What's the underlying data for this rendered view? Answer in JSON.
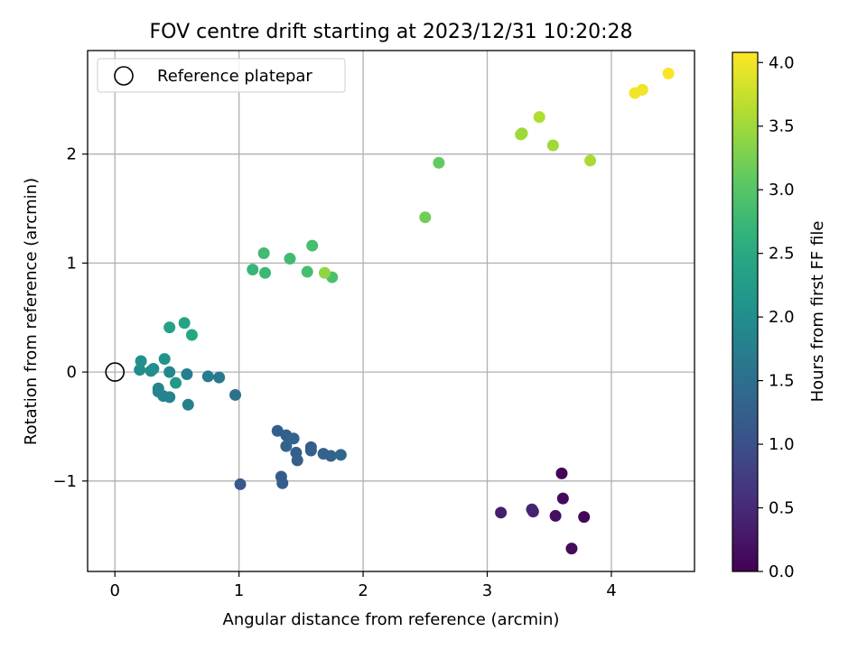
{
  "chart_data": {
    "type": "scatter",
    "title": "FOV centre drift starting at 2023/12/31 10:20:28",
    "xlabel": "Angular distance from reference (arcmin)",
    "ylabel": "Rotation from reference (arcmin)",
    "xlim": [
      -0.22,
      4.67
    ],
    "ylim": [
      -1.83,
      2.95
    ],
    "xticks": [
      0,
      1,
      2,
      3,
      4
    ],
    "yticks": [
      -1,
      0,
      1,
      2
    ],
    "grid": true,
    "legend": {
      "label": "Reference platepar",
      "placement": "top-left"
    },
    "colorbar": {
      "label": "Hours from first FF file",
      "min": 0.0,
      "max": 4.08,
      "ticks": [
        "0.0",
        "0.5",
        "1.0",
        "1.5",
        "2.0",
        "2.5",
        "3.0",
        "3.5",
        "4.0"
      ],
      "colormap": "viridis"
    },
    "reference_point": {
      "x": 0,
      "y": 0
    },
    "points": [
      {
        "x": 3.6,
        "y": -0.93,
        "c": 0.05
      },
      {
        "x": 3.61,
        "y": -1.16,
        "c": 0.1
      },
      {
        "x": 3.55,
        "y": -1.32,
        "c": 0.15
      },
      {
        "x": 3.78,
        "y": -1.33,
        "c": 0.08
      },
      {
        "x": 3.68,
        "y": -1.62,
        "c": 0.12
      },
      {
        "x": 3.11,
        "y": -1.29,
        "c": 0.35
      },
      {
        "x": 3.36,
        "y": -1.26,
        "c": 0.45
      },
      {
        "x": 3.37,
        "y": -1.28,
        "c": 0.4
      },
      {
        "x": 1.01,
        "y": -1.03,
        "c": 1.15
      },
      {
        "x": 1.34,
        "y": -0.96,
        "c": 1.2
      },
      {
        "x": 1.35,
        "y": -1.02,
        "c": 1.2
      },
      {
        "x": 1.31,
        "y": -0.54,
        "c": 1.25
      },
      {
        "x": 1.38,
        "y": -0.58,
        "c": 1.25
      },
      {
        "x": 1.44,
        "y": -0.61,
        "c": 1.3
      },
      {
        "x": 1.38,
        "y": -0.68,
        "c": 1.3
      },
      {
        "x": 1.46,
        "y": -0.74,
        "c": 1.25
      },
      {
        "x": 1.47,
        "y": -0.81,
        "c": 1.25
      },
      {
        "x": 1.58,
        "y": -0.69,
        "c": 1.2
      },
      {
        "x": 1.58,
        "y": -0.72,
        "c": 1.25
      },
      {
        "x": 1.68,
        "y": -0.75,
        "c": 1.3
      },
      {
        "x": 1.74,
        "y": -0.77,
        "c": 1.3
      },
      {
        "x": 1.82,
        "y": -0.76,
        "c": 1.35
      },
      {
        "x": 0.97,
        "y": -0.21,
        "c": 1.55
      },
      {
        "x": 0.84,
        "y": -0.05,
        "c": 1.65
      },
      {
        "x": 0.75,
        "y": -0.04,
        "c": 1.7
      },
      {
        "x": 0.58,
        "y": -0.02,
        "c": 1.75
      },
      {
        "x": 0.59,
        "y": -0.3,
        "c": 1.8
      },
      {
        "x": 0.44,
        "y": -0.23,
        "c": 1.85
      },
      {
        "x": 0.39,
        "y": -0.22,
        "c": 1.85
      },
      {
        "x": 0.35,
        "y": -0.15,
        "c": 1.9
      },
      {
        "x": 0.35,
        "y": -0.18,
        "c": 1.85
      },
      {
        "x": 0.44,
        "y": 0.0,
        "c": 1.9
      },
      {
        "x": 0.29,
        "y": 0.01,
        "c": 1.95
      },
      {
        "x": 0.31,
        "y": 0.03,
        "c": 2.0
      },
      {
        "x": 0.2,
        "y": 0.02,
        "c": 1.95
      },
      {
        "x": 0.21,
        "y": 0.1,
        "c": 2.05
      },
      {
        "x": 0.4,
        "y": 0.12,
        "c": 2.1
      },
      {
        "x": 0.49,
        "y": -0.1,
        "c": 2.2
      },
      {
        "x": 0.44,
        "y": 0.41,
        "c": 2.35
      },
      {
        "x": 0.56,
        "y": 0.45,
        "c": 2.4
      },
      {
        "x": 0.62,
        "y": 0.34,
        "c": 2.45
      },
      {
        "x": 1.11,
        "y": 0.94,
        "c": 2.7
      },
      {
        "x": 1.21,
        "y": 0.91,
        "c": 2.75
      },
      {
        "x": 1.2,
        "y": 1.09,
        "c": 2.8
      },
      {
        "x": 1.41,
        "y": 1.04,
        "c": 2.8
      },
      {
        "x": 1.55,
        "y": 0.92,
        "c": 2.85
      },
      {
        "x": 1.59,
        "y": 1.16,
        "c": 2.85
      },
      {
        "x": 1.75,
        "y": 0.87,
        "c": 2.9
      },
      {
        "x": 1.69,
        "y": 0.91,
        "c": 3.4
      },
      {
        "x": 2.5,
        "y": 1.42,
        "c": 3.2
      },
      {
        "x": 2.61,
        "y": 1.92,
        "c": 3.1
      },
      {
        "x": 3.27,
        "y": 2.18,
        "c": 3.55
      },
      {
        "x": 3.28,
        "y": 2.19,
        "c": 3.5
      },
      {
        "x": 3.42,
        "y": 2.34,
        "c": 3.6
      },
      {
        "x": 3.53,
        "y": 2.08,
        "c": 3.5
      },
      {
        "x": 3.83,
        "y": 1.94,
        "c": 3.55
      },
      {
        "x": 4.19,
        "y": 2.56,
        "c": 4.0
      },
      {
        "x": 4.25,
        "y": 2.59,
        "c": 4.0
      },
      {
        "x": 4.46,
        "y": 2.74,
        "c": 4.05
      }
    ]
  }
}
